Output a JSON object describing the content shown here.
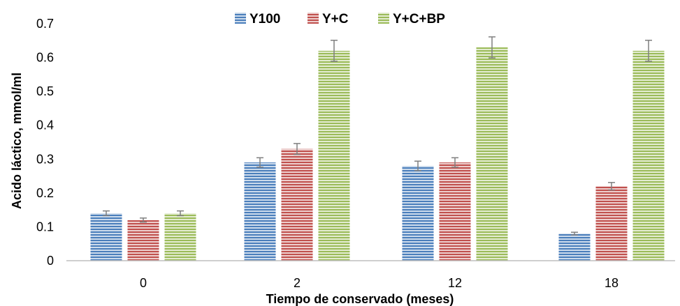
{
  "chart_data": {
    "type": "bar",
    "title": "",
    "xlabel": "Tiempo de conservado (meses)",
    "ylabel": "Acido láctico, mmol/ml",
    "categories": [
      "0",
      "2",
      "12",
      "18"
    ],
    "ylim": [
      0,
      0.7
    ],
    "yticks": [
      "0",
      "0.1",
      "0.2",
      "0.3",
      "0.4",
      "0.5",
      "0.6",
      "0.7"
    ],
    "grid": false,
    "legend_position": "top-center",
    "series": [
      {
        "name": "Y100",
        "color": "#4a7ebb",
        "values": [
          0.14,
          0.29,
          0.28,
          0.08
        ],
        "errors": [
          0.007,
          0.014,
          0.014,
          0.004
        ]
      },
      {
        "name": "Y+C",
        "color": "#c0504d",
        "values": [
          0.12,
          0.33,
          0.29,
          0.22
        ],
        "errors": [
          0.006,
          0.016,
          0.014,
          0.011
        ]
      },
      {
        "name": "Y+C+BP",
        "color": "#9bbb59",
        "values": [
          0.14,
          0.62,
          0.63,
          0.62
        ],
        "errors": [
          0.007,
          0.031,
          0.031,
          0.031
        ]
      }
    ]
  }
}
